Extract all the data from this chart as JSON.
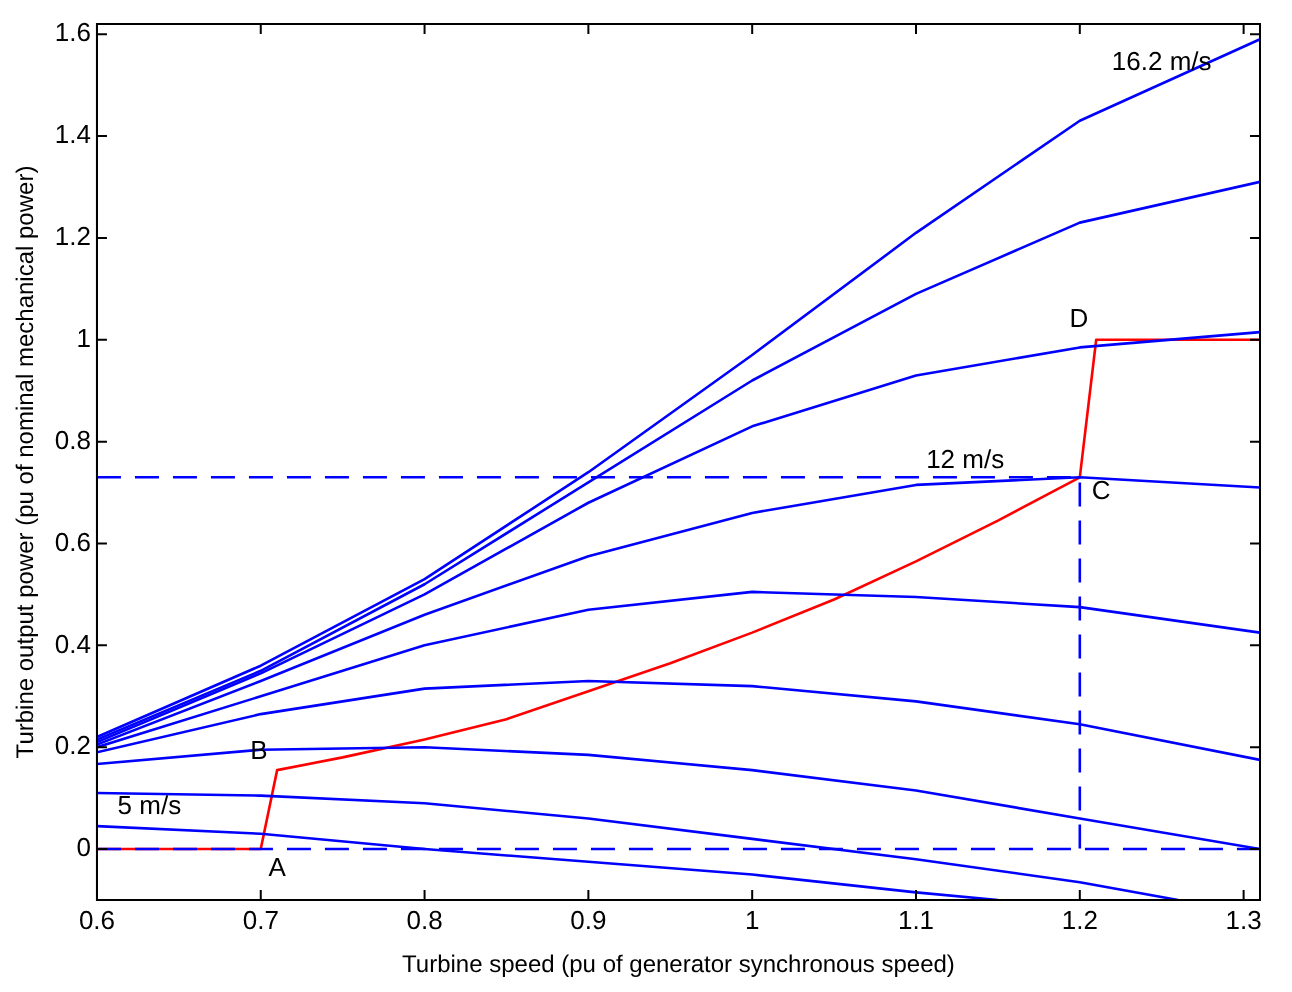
{
  "chart_data": {
    "type": "line",
    "xlabel": "Turbine speed (pu of generator synchronous speed)",
    "ylabel": "Turbine output power (pu of nominal mechanical power)",
    "xlim": [
      0.6,
      1.31
    ],
    "xticks": [
      0.6,
      0.7,
      0.8,
      0.9,
      1,
      1.1,
      1.2,
      1.3
    ],
    "ylim": [
      -0.1,
      1.62
    ],
    "yticks": [
      0,
      0.2,
      0.4,
      0.6,
      0.8,
      1,
      1.2,
      1.4,
      1.6
    ],
    "grid": false,
    "legend": false,
    "marker": "none",
    "line_style": "solid",
    "series": [
      {
        "color": "#0000ff",
        "x": [
          0.6,
          0.7,
          0.8,
          0.9,
          1.0,
          1.1,
          1.15
        ],
        "values": [
          0.045,
          0.03,
          0.0,
          -0.025,
          -0.05,
          -0.085,
          -0.1
        ]
      },
      {
        "color": "#0000ff",
        "x": [
          0.6,
          0.7,
          0.8,
          0.9,
          1.0,
          1.1,
          1.2,
          1.26
        ],
        "values": [
          0.11,
          0.105,
          0.09,
          0.06,
          0.02,
          -0.02,
          -0.065,
          -0.1
        ]
      },
      {
        "color": "#0000ff",
        "x": [
          0.6,
          0.7,
          0.8,
          0.9,
          1.0,
          1.1,
          1.2,
          1.31
        ],
        "values": [
          0.167,
          0.195,
          0.2,
          0.185,
          0.155,
          0.115,
          0.06,
          0.0
        ]
      },
      {
        "color": "#0000ff",
        "x": [
          0.6,
          0.7,
          0.8,
          0.9,
          1.0,
          1.1,
          1.2,
          1.31
        ],
        "values": [
          0.19,
          0.265,
          0.315,
          0.33,
          0.32,
          0.29,
          0.245,
          0.175
        ]
      },
      {
        "color": "#0000ff",
        "x": [
          0.6,
          0.7,
          0.8,
          0.9,
          1.0,
          1.1,
          1.2,
          1.31
        ],
        "values": [
          0.2,
          0.3,
          0.4,
          0.47,
          0.505,
          0.495,
          0.475,
          0.425
        ]
      },
      {
        "color": "#0000ff",
        "x": [
          0.6,
          0.7,
          0.8,
          0.9,
          1.0,
          1.1,
          1.2,
          1.31
        ],
        "values": [
          0.205,
          0.33,
          0.46,
          0.575,
          0.66,
          0.715,
          0.73,
          0.71
        ]
      },
      {
        "color": "#0000ff",
        "x": [
          0.6,
          0.7,
          0.8,
          0.9,
          1.0,
          1.1,
          1.2,
          1.31
        ],
        "values": [
          0.21,
          0.345,
          0.5,
          0.68,
          0.83,
          0.93,
          0.985,
          1.015
        ]
      },
      {
        "color": "#0000ff",
        "x": [
          0.6,
          0.7,
          0.8,
          0.9,
          1.0,
          1.1,
          1.2,
          1.31
        ],
        "values": [
          0.215,
          0.35,
          0.52,
          0.72,
          0.92,
          1.09,
          1.23,
          1.31
        ]
      },
      {
        "color": "#0000ff",
        "x": [
          0.6,
          0.7,
          0.8,
          0.9,
          1.0,
          1.1,
          1.2,
          1.31
        ],
        "values": [
          0.22,
          0.36,
          0.53,
          0.74,
          0.97,
          1.21,
          1.43,
          1.59
        ]
      },
      {
        "color": "#0000ff",
        "line_style": "dashed",
        "x": [
          0.6,
          1.2,
          1.2
        ],
        "values": [
          0.73,
          0.73,
          0
        ]
      },
      {
        "color": "#0000ff",
        "line_style": "dashed",
        "x": [
          0.6,
          1.31
        ],
        "values": [
          0,
          0
        ]
      },
      {
        "color": "#ff0000",
        "x": [
          0.6,
          0.7,
          0.71,
          0.75,
          0.8,
          0.85,
          0.9,
          0.95,
          1.0,
          1.05,
          1.1,
          1.15,
          1.2,
          1.21,
          1.31
        ],
        "values": [
          0,
          0,
          0.155,
          0.18,
          0.215,
          0.255,
          0.31,
          0.365,
          0.425,
          0.49,
          0.565,
          0.645,
          0.73,
          1.0,
          1.0
        ]
      }
    ],
    "annotations": [
      {
        "text": "16.2 m/s",
        "x": 1.25,
        "y": 1.5
      },
      {
        "text": "12 m/s",
        "x": 1.13,
        "y": 0.72
      },
      {
        "text": "5 m/s",
        "x": 0.632,
        "y": 0.04
      },
      {
        "text": "A",
        "x": 0.7,
        "y": 0
      },
      {
        "text": "B",
        "x": 0.71,
        "y": 0.155
      },
      {
        "text": "C",
        "x": 1.2,
        "y": 0.73
      },
      {
        "text": "D",
        "x": 1.21,
        "y": 1.0
      }
    ]
  }
}
